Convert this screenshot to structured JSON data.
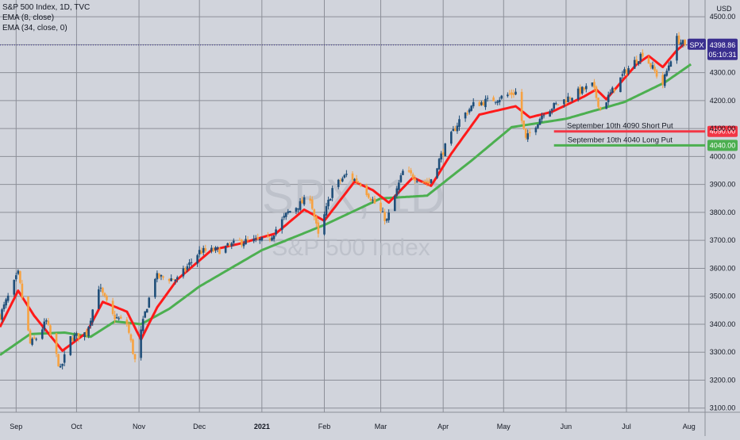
{
  "chart_data": {
    "type": "candlestick",
    "legend": {
      "title": "S&P 500 Index, 1D, TVC",
      "ema_fast": "EMA (8, close)",
      "ema_slow": "EMA (34, close, 0)"
    },
    "watermark": {
      "symbol": "SPX, 1D",
      "name": "S&P 500 Index"
    },
    "currency": "USD",
    "y_ticks": [
      4500,
      4400,
      4300,
      4200,
      4100,
      4000,
      3900,
      3800,
      3700,
      3600,
      3500,
      3400,
      3300,
      3200,
      3100
    ],
    "y_tick_labels": [
      "4500.00",
      "4400.00",
      "4300.00",
      "4200.00",
      "4100.00",
      "4000.00",
      "3900.00",
      "3800.00",
      "3700.00",
      "3600.00",
      "3500.00",
      "3400.00",
      "3300.00",
      "3200.00",
      "3100.00"
    ],
    "ylim": [
      3085,
      4560
    ],
    "xlim": [
      "2020-08-24",
      "2021-08-09"
    ],
    "x_ticks": [
      {
        "label": "Sep",
        "date": "2020-09-01",
        "bold": false
      },
      {
        "label": "Oct",
        "date": "2020-10-01",
        "bold": false
      },
      {
        "label": "Nov",
        "date": "2020-11-01",
        "bold": false
      },
      {
        "label": "Dec",
        "date": "2020-12-01",
        "bold": false
      },
      {
        "label": "2021",
        "date": "2021-01-01",
        "bold": true
      },
      {
        "label": "Feb",
        "date": "2021-02-01",
        "bold": false
      },
      {
        "label": "Mar",
        "date": "2021-03-01",
        "bold": false
      },
      {
        "label": "Apr",
        "date": "2021-04-01",
        "bold": false
      },
      {
        "label": "May",
        "date": "2021-05-01",
        "bold": false
      },
      {
        "label": "Jun",
        "date": "2021-06-01",
        "bold": false
      },
      {
        "label": "Jul",
        "date": "2021-07-01",
        "bold": false
      },
      {
        "label": "Aug",
        "date": "2021-08-01",
        "bold": false
      }
    ],
    "price_anchors": [
      {
        "date": "2020-08-24",
        "close": 3430
      },
      {
        "date": "2020-09-02",
        "close": 3580
      },
      {
        "date": "2020-09-08",
        "close": 3330
      },
      {
        "date": "2020-09-11",
        "close": 3350
      },
      {
        "date": "2020-09-16",
        "close": 3410
      },
      {
        "date": "2020-09-23",
        "close": 3236
      },
      {
        "date": "2020-09-28",
        "close": 3350
      },
      {
        "date": "2020-10-06",
        "close": 3370
      },
      {
        "date": "2020-10-12",
        "close": 3535
      },
      {
        "date": "2020-10-19",
        "close": 3430
      },
      {
        "date": "2020-10-26",
        "close": 3400
      },
      {
        "date": "2020-10-30",
        "close": 3270
      },
      {
        "date": "2020-11-04",
        "close": 3440
      },
      {
        "date": "2020-11-09",
        "close": 3570
      },
      {
        "date": "2020-11-20",
        "close": 3560
      },
      {
        "date": "2020-12-01",
        "close": 3660
      },
      {
        "date": "2020-12-11",
        "close": 3665
      },
      {
        "date": "2020-12-21",
        "close": 3695
      },
      {
        "date": "2021-01-04",
        "close": 3700
      },
      {
        "date": "2021-01-14",
        "close": 3800
      },
      {
        "date": "2021-01-25",
        "close": 3855
      },
      {
        "date": "2021-01-29",
        "close": 3715
      },
      {
        "date": "2021-02-05",
        "close": 3885
      },
      {
        "date": "2021-02-12",
        "close": 3935
      },
      {
        "date": "2021-02-19",
        "close": 3905
      },
      {
        "date": "2021-03-04",
        "close": 3770
      },
      {
        "date": "2021-03-12",
        "close": 3945
      },
      {
        "date": "2021-03-25",
        "close": 3905
      },
      {
        "date": "2021-04-01",
        "close": 4020
      },
      {
        "date": "2021-04-09",
        "close": 4130
      },
      {
        "date": "2021-04-16",
        "close": 4185
      },
      {
        "date": "2021-04-29",
        "close": 4210
      },
      {
        "date": "2021-05-07",
        "close": 4230
      },
      {
        "date": "2021-05-12",
        "close": 4060
      },
      {
        "date": "2021-05-21",
        "close": 4160
      },
      {
        "date": "2021-06-07",
        "close": 4230
      },
      {
        "date": "2021-06-14",
        "close": 4255
      },
      {
        "date": "2021-06-18",
        "close": 4170
      },
      {
        "date": "2021-06-30",
        "close": 4300
      },
      {
        "date": "2021-07-09",
        "close": 4370
      },
      {
        "date": "2021-07-19",
        "close": 4260
      },
      {
        "date": "2021-07-26",
        "close": 4420
      },
      {
        "date": "2021-07-30",
        "close": 4398.86
      }
    ],
    "ema_fast_anchors": [
      {
        "date": "2020-08-24",
        "value": 3390
      },
      {
        "date": "2020-09-02",
        "value": 3520
      },
      {
        "date": "2020-09-10",
        "value": 3430
      },
      {
        "date": "2020-09-24",
        "value": 3305
      },
      {
        "date": "2020-10-06",
        "value": 3370
      },
      {
        "date": "2020-10-14",
        "value": 3480
      },
      {
        "date": "2020-10-26",
        "value": 3445
      },
      {
        "date": "2020-11-02",
        "value": 3345
      },
      {
        "date": "2020-11-10",
        "value": 3460
      },
      {
        "date": "2020-11-20",
        "value": 3560
      },
      {
        "date": "2020-12-07",
        "value": 3665
      },
      {
        "date": "2020-12-22",
        "value": 3690
      },
      {
        "date": "2021-01-08",
        "value": 3725
      },
      {
        "date": "2021-01-22",
        "value": 3810
      },
      {
        "date": "2021-02-01",
        "value": 3770
      },
      {
        "date": "2021-02-16",
        "value": 3910
      },
      {
        "date": "2021-02-25",
        "value": 3880
      },
      {
        "date": "2021-03-05",
        "value": 3835
      },
      {
        "date": "2021-03-17",
        "value": 3925
      },
      {
        "date": "2021-03-26",
        "value": 3895
      },
      {
        "date": "2021-04-05",
        "value": 4010
      },
      {
        "date": "2021-04-19",
        "value": 4150
      },
      {
        "date": "2021-05-07",
        "value": 4180
      },
      {
        "date": "2021-05-14",
        "value": 4140
      },
      {
        "date": "2021-05-25",
        "value": 4160
      },
      {
        "date": "2021-06-10",
        "value": 4215
      },
      {
        "date": "2021-06-16",
        "value": 4240
      },
      {
        "date": "2021-06-21",
        "value": 4205
      },
      {
        "date": "2021-07-06",
        "value": 4330
      },
      {
        "date": "2021-07-12",
        "value": 4360
      },
      {
        "date": "2021-07-19",
        "value": 4320
      },
      {
        "date": "2021-07-26",
        "value": 4380
      },
      {
        "date": "2021-07-30",
        "value": 4405
      }
    ],
    "ema_slow_anchors": [
      {
        "date": "2020-08-24",
        "value": 3290
      },
      {
        "date": "2020-09-08",
        "value": 3365
      },
      {
        "date": "2020-09-25",
        "value": 3370
      },
      {
        "date": "2020-10-08",
        "value": 3355
      },
      {
        "date": "2020-10-20",
        "value": 3410
      },
      {
        "date": "2020-11-02",
        "value": 3400
      },
      {
        "date": "2020-11-16",
        "value": 3455
      },
      {
        "date": "2020-12-01",
        "value": 3535
      },
      {
        "date": "2021-01-01",
        "value": 3665
      },
      {
        "date": "2021-02-01",
        "value": 3755
      },
      {
        "date": "2021-03-01",
        "value": 3850
      },
      {
        "date": "2021-03-24",
        "value": 3860
      },
      {
        "date": "2021-04-15",
        "value": 3985
      },
      {
        "date": "2021-05-05",
        "value": 4105
      },
      {
        "date": "2021-06-01",
        "value": 4135
      },
      {
        "date": "2021-06-30",
        "value": 4195
      },
      {
        "date": "2021-07-20",
        "value": 4265
      },
      {
        "date": "2021-08-02",
        "value": 4330
      }
    ],
    "horizontal_lines": [
      {
        "label": "September 10th 4090 Short Put",
        "value": 4090,
        "price_label": "4090.00",
        "color": "#f23645",
        "start": "2021-05-26"
      },
      {
        "label": "September 10th 4040 Long Put",
        "value": 4040,
        "price_label": "4040.00",
        "color": "#4caf50",
        "start": "2021-05-26"
      }
    ],
    "last_price": {
      "symbol": "SPX",
      "value": 4398.86,
      "label": "4398.86",
      "countdown": "05:10:31"
    },
    "colors": {
      "background": "#d1d4dc",
      "grid": "#8c8f98",
      "up": "#1f4e79",
      "down": "#f7a241",
      "ema_fast": "#ff1a1a",
      "ema_slow": "#4caf50",
      "label_bg": "#3a2f8f",
      "text": "#131722"
    }
  }
}
